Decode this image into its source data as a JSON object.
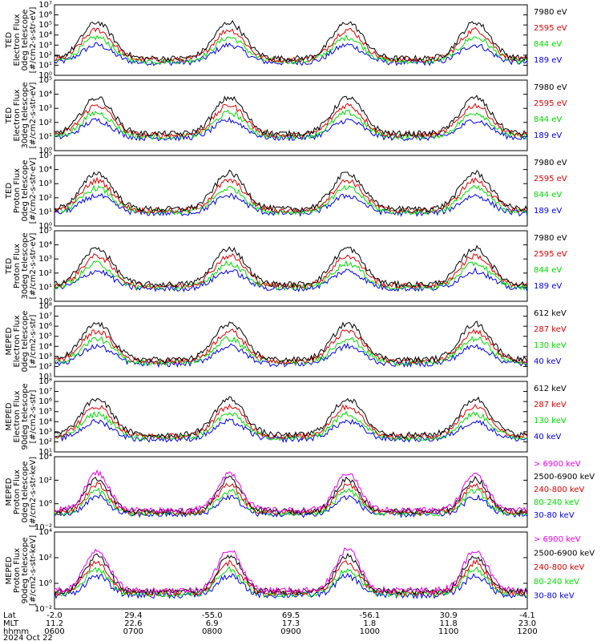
{
  "chart_data": {
    "type": "line",
    "x": {
      "rows": [
        {
          "key": "Lat",
          "label": "Lat",
          "values": [
            "-2.0",
            "29.4",
            "-55.0",
            "69.5",
            "-56.1",
            "30.9",
            "-4.1"
          ]
        },
        {
          "key": "MLT",
          "label": "MLT",
          "values": [
            "11.2",
            "22.6",
            "6.9",
            "17.3",
            "1.8",
            "11.8",
            "23.0"
          ]
        },
        {
          "key": "hhmm",
          "label": "hhmm",
          "values": [
            "0600",
            "0700",
            "0800",
            "0900",
            "1000",
            "1100",
            "1200"
          ]
        }
      ],
      "date": "2024 Oct 22",
      "range_hours": [
        6.0,
        12.0
      ]
    },
    "panels": [
      {
        "ylabel_lines": [
          "TED",
          "Electron Flux",
          "0deg telescope",
          "[#/cm2-s-str-eV]"
        ],
        "ylim": [
          0,
          7
        ],
        "log_scale": true,
        "ticks": [
          "10⁰",
          "10¹",
          "10²",
          "10³",
          "10⁴",
          "10⁵",
          "10⁶",
          "10⁷"
        ],
        "legend": [
          {
            "label": "7980 eV",
            "color": "#000000"
          },
          {
            "label": "2595 eV",
            "color": "#e00000"
          },
          {
            "label": "844 eV",
            "color": "#00dd00"
          },
          {
            "label": "189 eV",
            "color": "#0000ee"
          }
        ]
      },
      {
        "ylabel_lines": [
          "TED",
          "Electron Flux",
          "30deg telescope",
          "[#/cm2-s-str-eV]"
        ],
        "ylim": [
          0,
          5
        ],
        "log_scale": true,
        "ticks": [
          "10⁰",
          "10¹",
          "10²",
          "10³",
          "10⁴",
          "10⁵"
        ],
        "legend": [
          {
            "label": "7980 eV",
            "color": "#000000"
          },
          {
            "label": "2595 eV",
            "color": "#e00000"
          },
          {
            "label": "844 eV",
            "color": "#00dd00"
          },
          {
            "label": "189 eV",
            "color": "#0000ee"
          }
        ]
      },
      {
        "ylabel_lines": [
          "TED",
          "Proton Flux",
          "0deg telescope",
          "[#/cm2-s-str-eV]"
        ],
        "ylim": [
          0,
          5
        ],
        "log_scale": true,
        "ticks": [
          "10⁰",
          "10¹",
          "10²",
          "10³",
          "10⁴",
          "10⁵"
        ],
        "legend": [
          {
            "label": "7980 eV",
            "color": "#000000"
          },
          {
            "label": "2595 eV",
            "color": "#e00000"
          },
          {
            "label": "844 eV",
            "color": "#00dd00"
          },
          {
            "label": "189 eV",
            "color": "#0000ee"
          }
        ]
      },
      {
        "ylabel_lines": [
          "TED",
          "Proton Flux",
          "30deg telescope",
          "[#/cm2-s-str-eV]"
        ],
        "ylim": [
          0,
          5
        ],
        "log_scale": true,
        "ticks": [
          "10⁰",
          "10¹",
          "10²",
          "10³",
          "10⁴",
          "10⁵"
        ],
        "legend": [
          {
            "label": "7980 eV",
            "color": "#000000"
          },
          {
            "label": "2595 eV",
            "color": "#e00000"
          },
          {
            "label": "844 eV",
            "color": "#00dd00"
          },
          {
            "label": "189 eV",
            "color": "#0000ee"
          }
        ]
      },
      {
        "ylabel_lines": [
          "MEPED",
          "Electron Flux",
          "0deg telescope",
          "[#/cm2-s-str]"
        ],
        "ylim": [
          1,
          8
        ],
        "log_scale": true,
        "ticks": [
          "10¹",
          "10²",
          "10³",
          "10⁴",
          "10⁵",
          "10⁶",
          "10⁷",
          "10⁸"
        ],
        "legend": [
          {
            "label": "612 keV",
            "color": "#000000"
          },
          {
            "label": "287 keV",
            "color": "#e00000"
          },
          {
            "label": "130 keV",
            "color": "#00dd00"
          },
          {
            "label": "40 keV",
            "color": "#0000ee"
          }
        ]
      },
      {
        "ylabel_lines": [
          "MEPED",
          "Electron Flux",
          "90deg telescope",
          "[#/cm2-s-str]"
        ],
        "ylim": [
          1,
          8
        ],
        "log_scale": true,
        "ticks": [
          "10¹",
          "10²",
          "10³",
          "10⁴",
          "10⁵",
          "10⁶",
          "10⁷",
          "10⁸"
        ],
        "legend": [
          {
            "label": "612 keV",
            "color": "#000000"
          },
          {
            "label": "287 keV",
            "color": "#e00000"
          },
          {
            "label": "130 keV",
            "color": "#00dd00"
          },
          {
            "label": "40 keV",
            "color": "#0000ee"
          }
        ]
      },
      {
        "ylabel_lines": [
          "MEPED",
          "Proton Flux",
          "0deg telescope",
          "[#/cm2-s-str-keV]"
        ],
        "ylim": [
          -3,
          6
        ],
        "log_scale": true,
        "ticks": [
          "10⁻²",
          "10⁰",
          "10²",
          "10⁴"
        ],
        "legend": [
          {
            "label": "> 6900 keV",
            "color": "#ee00ee"
          },
          {
            "label": "2500-6900 keV",
            "color": "#000000"
          },
          {
            "label": "240-800 keV",
            "color": "#e00000"
          },
          {
            "label": "80-240 keV",
            "color": "#00dd00"
          },
          {
            "label": "30-80 keV",
            "color": "#0000ee"
          }
        ]
      },
      {
        "ylabel_lines": [
          "MEPED",
          "Proton Flux",
          "90deg telescope",
          "[#/cm2-s-str-keV]"
        ],
        "ylim": [
          -3,
          6
        ],
        "log_scale": true,
        "ticks": [
          "10⁻²",
          "10⁰",
          "10²",
          "10⁴"
        ],
        "legend": [
          {
            "label": "> 6900 keV",
            "color": "#ee00ee"
          },
          {
            "label": "2500-6900 keV",
            "color": "#000000"
          },
          {
            "label": "240-800 keV",
            "color": "#e00000"
          },
          {
            "label": "80-240 keV",
            "color": "#00dd00"
          },
          {
            "label": "30-80 keV",
            "color": "#0000ee"
          }
        ]
      }
    ]
  }
}
